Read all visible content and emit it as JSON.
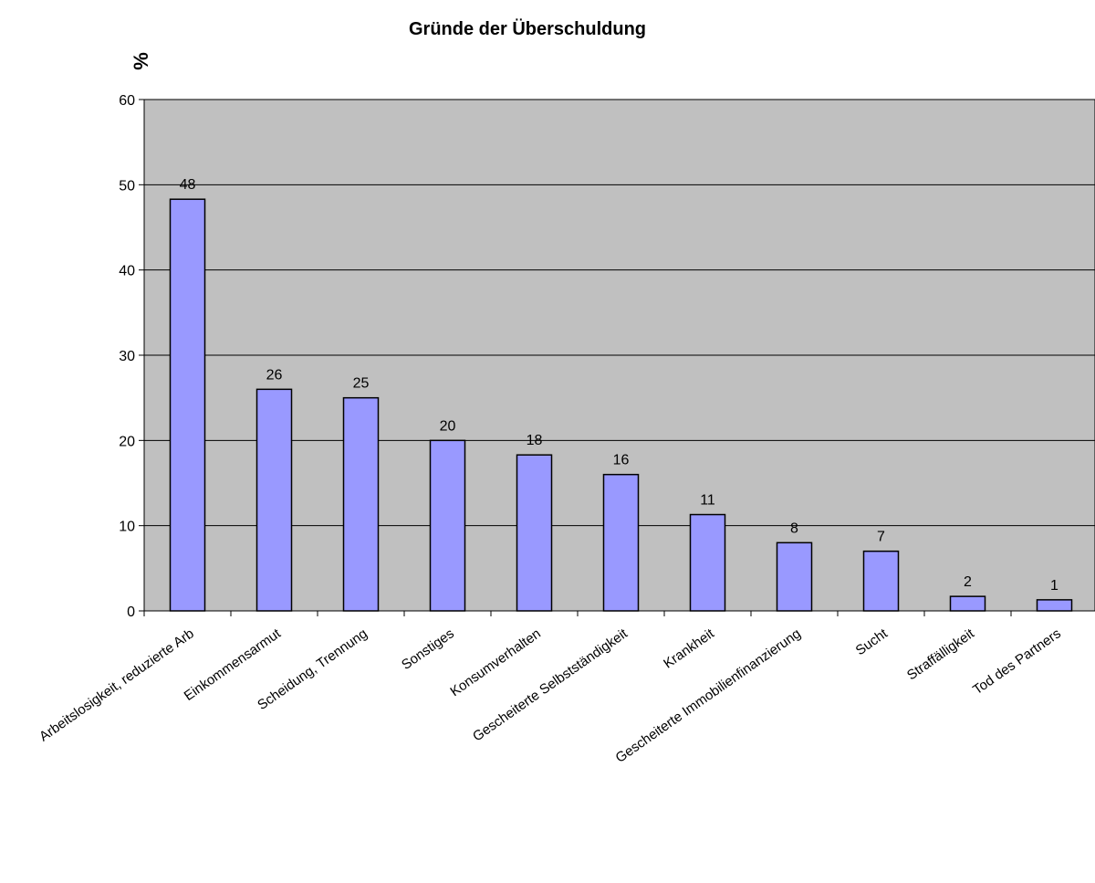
{
  "chart_data": {
    "type": "bar",
    "title": "Gründe der Überschuldung",
    "xlabel": "",
    "ylabel": "%",
    "ylim": [
      0,
      60
    ],
    "yticks": [
      0,
      10,
      20,
      30,
      40,
      50,
      60
    ],
    "grid": true,
    "legend": "none",
    "plot_background": "#c0c0c0",
    "bar_color": "#9999ff",
    "categories": [
      "Arbeitslosigkeit, reduzierte Arb",
      "Einkommensarmut",
      "Scheidung, Trennung",
      "Sonstiges",
      "Konsumverhalten",
      "Gescheiterte Selbstständigkeit",
      "Krankheit",
      "Gescheiterte Immobilienfinanzierung",
      "Sucht",
      "Straffälligkeit",
      "Tod des Partners"
    ],
    "values": [
      48.3,
      26,
      25,
      20,
      18.3,
      16,
      11.3,
      8,
      7,
      1.7,
      1.3
    ],
    "data_labels": [
      "48",
      "26",
      "25",
      "20",
      "18",
      "16",
      "11",
      "8",
      "7",
      "2",
      "1"
    ]
  }
}
